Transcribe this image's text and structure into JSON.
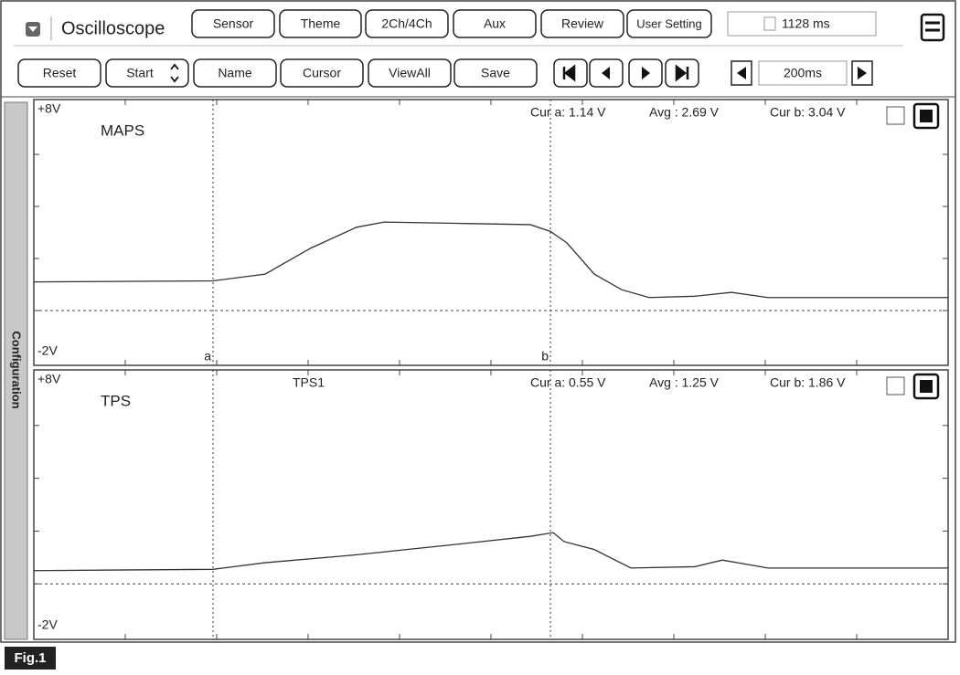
{
  "app": {
    "title": "Oscilloscope",
    "elapsed": "1128 ms",
    "side_tab": "Configuration",
    "figure_label": "Fig.1"
  },
  "toolbar": {
    "menu_buttons": [
      "Sensor",
      "Theme",
      "2Ch/4Ch",
      "Aux",
      "Review",
      "User Setting"
    ],
    "action_buttons": [
      "Reset",
      "Start",
      "Name",
      "Cursor",
      "ViewAll",
      "Save"
    ],
    "time_per_div": "200ms"
  },
  "chart_data": [
    {
      "type": "line",
      "xlim": [
        0,
        2000
      ],
      "xticks": [
        0,
        200,
        400,
        600,
        800,
        1000,
        1200,
        1400,
        1600,
        1800,
        2000
      ],
      "ylim": [
        -2,
        8
      ],
      "yticks": [
        {
          "value": 8,
          "label": "+8V"
        },
        {
          "value": -2,
          "label": "-2V"
        }
      ],
      "minor_yticks": [
        0,
        2,
        4,
        6
      ],
      "zero_line": 0,
      "readouts": [
        "Cur a: 1.14 V",
        "Avg : 2.69 V",
        "Cur b: 3.04 V"
      ],
      "cursors": [
        {
          "label": "a",
          "x": 392
        },
        {
          "label": "b",
          "x": 1130
        }
      ],
      "x": [
        0,
        392,
        506,
        606,
        706,
        766,
        926,
        1086,
        1130,
        1166,
        1226,
        1286,
        1346,
        1446,
        1526,
        1606,
        2000
      ],
      "series": [
        {
          "name": "MAPS",
          "color": "#333333",
          "values": [
            1.1,
            1.14,
            1.4,
            2.4,
            3.2,
            3.4,
            3.35,
            3.3,
            3.04,
            2.6,
            1.4,
            0.8,
            0.5,
            0.55,
            0.7,
            0.5,
            0.5
          ]
        }
      ]
    },
    {
      "type": "line",
      "title": "TPS1",
      "xlim": [
        0,
        2000
      ],
      "xticks": [
        0,
        200,
        400,
        600,
        800,
        1000,
        1200,
        1400,
        1600,
        1800,
        2000
      ],
      "ylim": [
        -2,
        8
      ],
      "yticks": [
        {
          "value": 8,
          "label": "+8V"
        },
        {
          "value": -2,
          "label": "-2V"
        }
      ],
      "minor_yticks": [
        0,
        2,
        4,
        6
      ],
      "zero_line": 0,
      "readouts": [
        "Cur a: 0.55 V",
        "Avg : 1.25 V",
        "Cur b: 1.86 V"
      ],
      "cursors": [
        {
          "x": 392
        },
        {
          "x": 1130
        }
      ],
      "x": [
        0,
        392,
        506,
        706,
        926,
        1086,
        1136,
        1160,
        1226,
        1306,
        1446,
        1506,
        1606,
        2000
      ],
      "series": [
        {
          "name": "TPS",
          "color": "#333333",
          "values": [
            0.5,
            0.55,
            0.8,
            1.1,
            1.5,
            1.8,
            1.94,
            1.6,
            1.3,
            0.6,
            0.65,
            0.9,
            0.6,
            0.6
          ]
        }
      ]
    }
  ]
}
